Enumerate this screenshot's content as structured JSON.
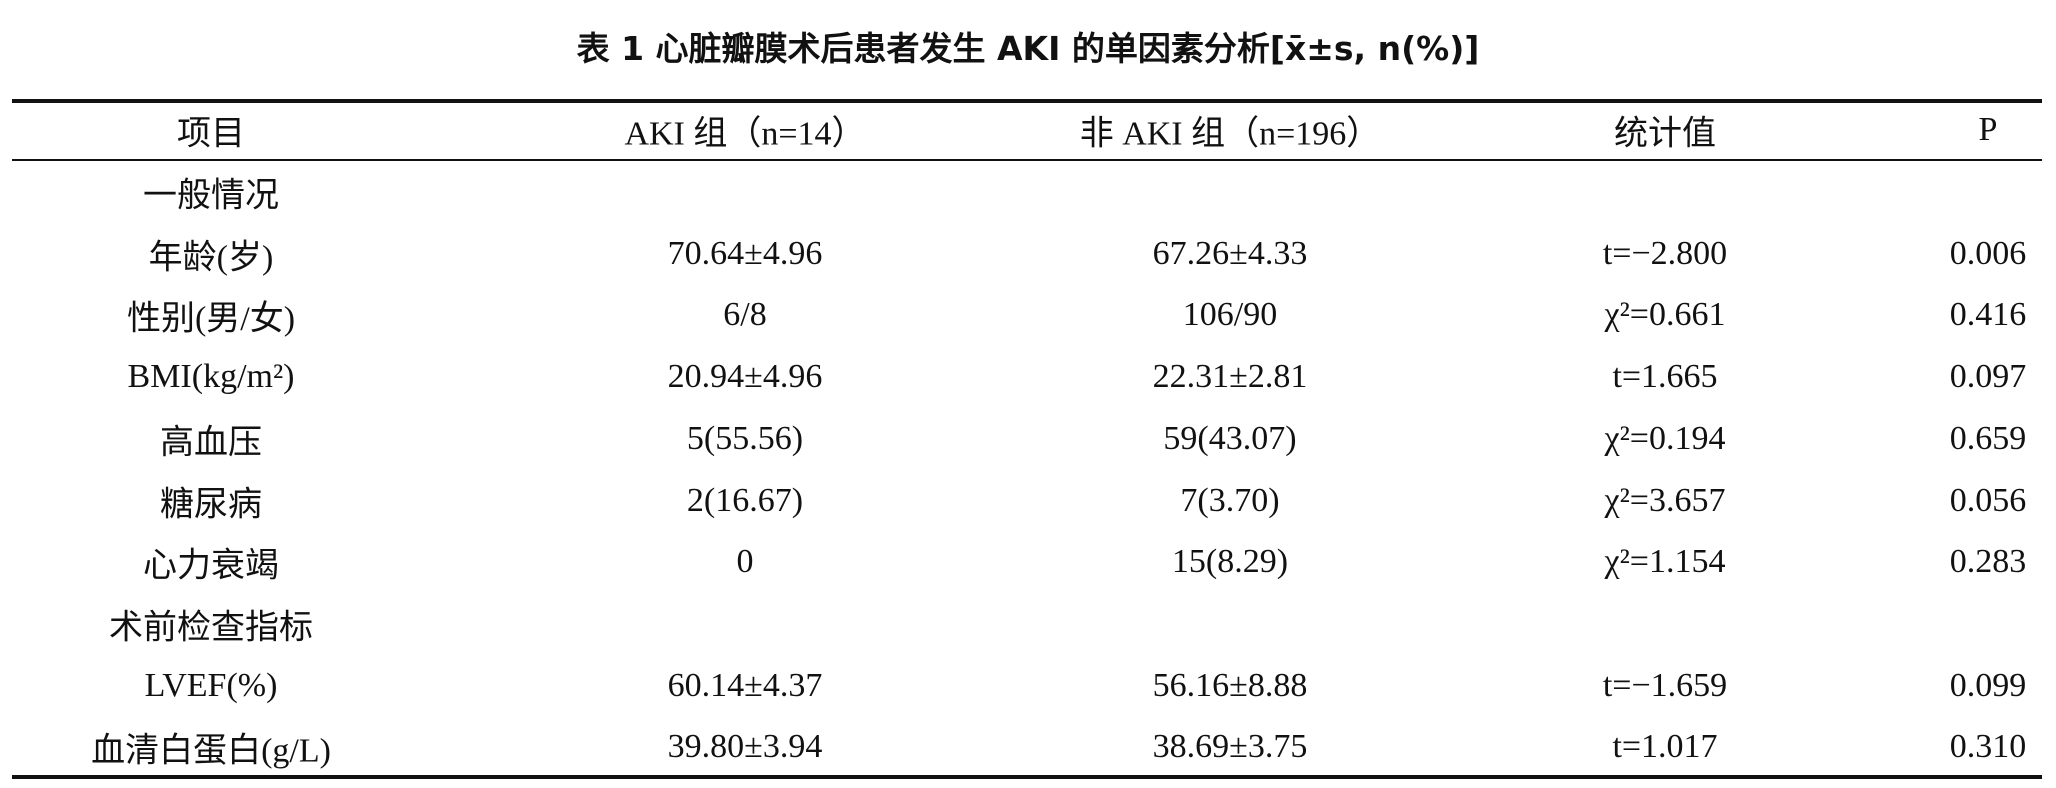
{
  "title": "表 1  心脏瓣膜术后患者发生 AKI 的单因素分析[x̄±s, n(%)]",
  "table": {
    "header": [
      "项目",
      "AKI 组（n=14）",
      "非 AKI 组（n=196）",
      "统计值",
      "P"
    ],
    "rows": [
      [
        "一般情况"
      ],
      [
        "年龄(岁)",
        "70.64±4.96",
        "67.26±4.33",
        "t=−2.800",
        "0.006"
      ],
      [
        "性别(男/女)",
        "6/8",
        "106/90",
        "χ²=0.661",
        "0.416"
      ],
      [
        "BMI(kg/m²)",
        "20.94±4.96",
        "22.31±2.81",
        "t=1.665",
        "0.097"
      ],
      [
        "高血压",
        "5(55.56)",
        "59(43.07)",
        "χ²=0.194",
        "0.659"
      ],
      [
        "糖尿病",
        "2(16.67)",
        "7(3.70)",
        "χ²=3.657",
        "0.056"
      ],
      [
        "心力衰竭",
        "0",
        "15(8.29)",
        "χ²=1.154",
        "0.283"
      ],
      [
        "术前检查指标"
      ],
      [
        "LVEF(%)",
        "60.14±4.37",
        "56.16±8.88",
        "t=−1.659",
        "0.099"
      ],
      [
        "血清白蛋白(g/L)",
        "39.80±3.94",
        "38.69±3.75",
        "t=1.017",
        "0.310"
      ]
    ]
  }
}
